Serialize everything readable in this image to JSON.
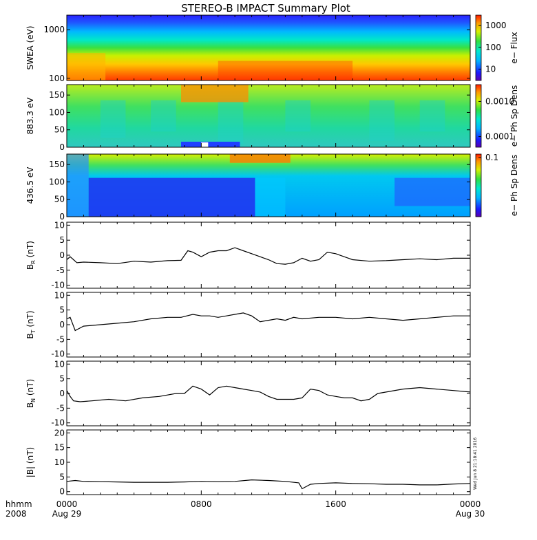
{
  "title": "STEREO-B IMPACT Summary Plot",
  "footer": {
    "unit_label": "hhmm",
    "year": "2008",
    "stamp": "Wed Jun 8 21:18:41 2016"
  },
  "time_axis": {
    "range_hours": [
      0,
      24
    ],
    "major_ticks": [
      {
        "h": 0,
        "label": "0000",
        "sublabel": "Aug 29"
      },
      {
        "h": 8,
        "label": "0800",
        "sublabel": ""
      },
      {
        "h": 16,
        "label": "1600",
        "sublabel": ""
      },
      {
        "h": 24,
        "label": "0000",
        "sublabel": "Aug 30"
      }
    ]
  },
  "chart_data": [
    {
      "type": "heatmap",
      "ylabel": "SWEA (eV)",
      "yscale": "log",
      "ylim": [
        90,
        2000
      ],
      "yticks": [
        {
          "v": 100,
          "label": "100"
        },
        {
          "v": 1000,
          "label": "1000"
        }
      ],
      "colorbar": {
        "label": "e− Flux",
        "scale": "log",
        "range": [
          3,
          3000
        ],
        "ticks": [
          {
            "v": 10,
            "label": "10"
          },
          {
            "v": 100,
            "label": "100"
          },
          {
            "v": 1000,
            "label": "1000"
          }
        ]
      }
    },
    {
      "type": "heatmap",
      "ylabel": "883.3 eV",
      "ylim": [
        0,
        180
      ],
      "yticks": [
        {
          "v": 0,
          "label": "0"
        },
        {
          "v": 50,
          "label": "50"
        },
        {
          "v": 100,
          "label": "100"
        },
        {
          "v": 150,
          "label": "150"
        }
      ],
      "colorbar": {
        "label": "e− Ph Sp Dens",
        "scale": "log",
        "range": [
          5e-05,
          0.003
        ],
        "ticks": [
          {
            "v": 0.0001,
            "label": "0.0001"
          },
          {
            "v": 0.001,
            "label": "0.0010"
          }
        ]
      }
    },
    {
      "type": "heatmap",
      "ylabel": "436.5 eV",
      "ylim": [
        0,
        180
      ],
      "yticks": [
        {
          "v": 0,
          "label": "0"
        },
        {
          "v": 50,
          "label": "50"
        },
        {
          "v": 100,
          "label": "100"
        },
        {
          "v": 150,
          "label": "150"
        }
      ],
      "colorbar": {
        "label": "e− Ph Sp Dens",
        "scale": "log",
        "range": [
          0.004,
          0.12
        ],
        "ticks": [
          {
            "v": 0.1,
            "label": "0.1"
          }
        ]
      }
    },
    {
      "type": "line",
      "ylabel": "BR (nT)",
      "ylim": [
        -11,
        11
      ],
      "yticks": [
        {
          "v": -10,
          "label": "-10"
        },
        {
          "v": -5,
          "label": "-5"
        },
        {
          "v": 0,
          "label": "0"
        },
        {
          "v": 5,
          "label": "5"
        },
        {
          "v": 10,
          "label": "10"
        }
      ],
      "x": [
        0,
        0.2,
        0.4,
        0.6,
        1,
        2,
        3,
        4,
        5,
        6,
        6.8,
        7.2,
        7.5,
        8,
        8.5,
        9,
        9.5,
        10,
        10.5,
        11,
        11.5,
        12,
        12.5,
        13,
        13.5,
        14,
        14.5,
        15,
        15.5,
        16,
        16.5,
        17,
        18,
        19,
        20,
        21,
        22,
        23,
        24
      ],
      "y": [
        -1.5,
        -0.5,
        -1.5,
        -2.5,
        -2.3,
        -2.5,
        -2.8,
        -2.0,
        -2.3,
        -1.8,
        -1.7,
        1.5,
        1.0,
        -0.5,
        1.0,
        1.5,
        1.5,
        2.5,
        1.5,
        0.5,
        -0.5,
        -1.5,
        -2.8,
        -3.0,
        -2.5,
        -1.0,
        -2.0,
        -1.5,
        1.0,
        0.5,
        -0.5,
        -1.5,
        -2.0,
        -1.8,
        -1.5,
        -1.2,
        -1.5,
        -1.0,
        -1.0
      ]
    },
    {
      "type": "line",
      "ylabel": "BT (nT)",
      "ylim": [
        -11,
        11
      ],
      "yticks": [
        {
          "v": -10,
          "label": "-10"
        },
        {
          "v": -5,
          "label": "-5"
        },
        {
          "v": 0,
          "label": "0"
        },
        {
          "v": 5,
          "label": "5"
        },
        {
          "v": 10,
          "label": "10"
        }
      ],
      "x": [
        0,
        0.2,
        0.5,
        1,
        2,
        3,
        4,
        5,
        6,
        6.8,
        7.5,
        8,
        8.5,
        9,
        9.5,
        10,
        10.5,
        11,
        11.5,
        12,
        12.5,
        13,
        13.5,
        14,
        15,
        16,
        17,
        18,
        19,
        20,
        21,
        22,
        23,
        24
      ],
      "y": [
        2.0,
        2.5,
        -2.0,
        -0.5,
        0.0,
        0.5,
        1.0,
        2.0,
        2.5,
        2.5,
        3.5,
        3.0,
        3.0,
        2.5,
        3.0,
        3.5,
        4.0,
        3.0,
        1.0,
        1.5,
        2.0,
        1.5,
        2.5,
        2.0,
        2.5,
        2.5,
        2.0,
        2.5,
        2.0,
        1.5,
        2.0,
        2.5,
        3.0,
        3.0
      ]
    },
    {
      "type": "line",
      "ylabel": "BN (nT)",
      "ylim": [
        -11,
        11
      ],
      "yticks": [
        {
          "v": -10,
          "label": "-10"
        },
        {
          "v": -5,
          "label": "-5"
        },
        {
          "v": 0,
          "label": "0"
        },
        {
          "v": 5,
          "label": "5"
        },
        {
          "v": 10,
          "label": "10"
        }
      ],
      "x": [
        0,
        0.2,
        0.4,
        0.8,
        1.5,
        2.5,
        3.5,
        4.5,
        5.5,
        6.5,
        7,
        7.5,
        8,
        8.5,
        9,
        9.5,
        10,
        10.5,
        11,
        11.5,
        12,
        12.5,
        13,
        13.5,
        14,
        14.5,
        15,
        15.5,
        16,
        16.5,
        17,
        17.5,
        18,
        18.5,
        19,
        20,
        21,
        22,
        23,
        24
      ],
      "y": [
        1.0,
        -1.0,
        -2.5,
        -2.8,
        -2.5,
        -2.0,
        -2.5,
        -1.5,
        -1.0,
        0.0,
        0.0,
        2.5,
        1.5,
        -0.5,
        2.0,
        2.5,
        2.0,
        1.5,
        1.0,
        0.5,
        -1.0,
        -2.0,
        -2.0,
        -2.0,
        -1.5,
        1.5,
        1.0,
        -0.5,
        -1.0,
        -1.5,
        -1.5,
        -2.5,
        -2.0,
        0.0,
        0.5,
        1.5,
        2.0,
        1.5,
        1.0,
        0.5
      ]
    },
    {
      "type": "line",
      "ylabel": "|B| (nT)",
      "ylim": [
        -1,
        21
      ],
      "yticks": [
        {
          "v": 0,
          "label": "0"
        },
        {
          "v": 5,
          "label": "5"
        },
        {
          "v": 10,
          "label": "10"
        },
        {
          "v": 15,
          "label": "15"
        },
        {
          "v": 20,
          "label": "20"
        }
      ],
      "x": [
        0,
        0.5,
        1,
        2,
        3,
        4,
        5,
        6,
        7,
        8,
        9,
        10,
        11,
        12,
        13,
        13.8,
        14,
        14.5,
        15,
        16,
        17,
        18,
        19,
        20,
        21,
        22,
        23,
        24
      ],
      "y": [
        3.5,
        3.8,
        3.5,
        3.4,
        3.3,
        3.2,
        3.2,
        3.2,
        3.3,
        3.5,
        3.4,
        3.5,
        4.0,
        3.8,
        3.5,
        3.0,
        1.0,
        2.5,
        2.8,
        3.0,
        2.8,
        2.7,
        2.5,
        2.5,
        2.3,
        2.3,
        2.6,
        2.8
      ]
    }
  ]
}
